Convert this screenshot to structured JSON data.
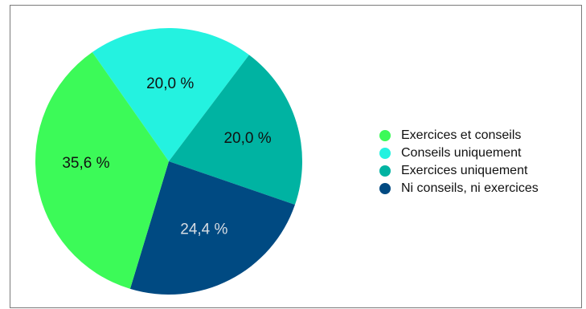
{
  "chart_data": {
    "type": "pie",
    "slices": [
      {
        "label": "Conseils uniquement",
        "value": 20.0,
        "display": "20,0 %",
        "color": "#24f2e0",
        "label_color": "#111111"
      },
      {
        "label": "Exercices uniquement",
        "value": 20.0,
        "display": "20,0 %",
        "color": "#00b3a2",
        "label_color": "#111111"
      },
      {
        "label": "Ni conseils, ni exercices",
        "value": 24.4,
        "display": "24,4 %",
        "color": "#004a82",
        "label_color": "#d8dde3"
      },
      {
        "label": "Exercices et conseils",
        "value": 35.6,
        "display": "35,6 %",
        "color": "#3cfa58",
        "label_color": "#111111"
      }
    ],
    "legend": {
      "position": "right",
      "items": [
        {
          "label": "Exercices et conseils",
          "color": "#3cfa58"
        },
        {
          "label": "Conseils uniquement",
          "color": "#24f2e0"
        },
        {
          "label": "Exercices uniquement",
          "color": "#00b3a2"
        },
        {
          "label": "Ni conseils, ni exercices",
          "color": "#004a82"
        }
      ]
    }
  }
}
